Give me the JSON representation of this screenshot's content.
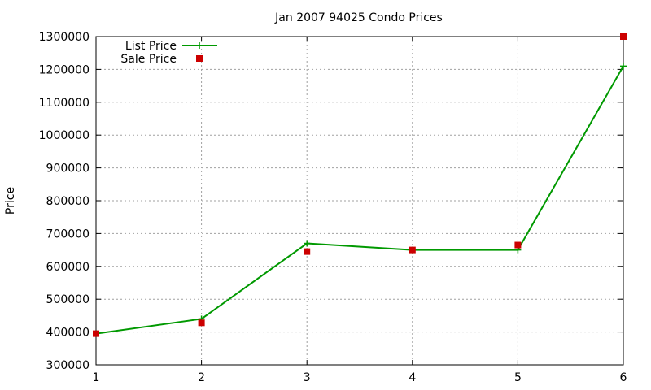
{
  "chart_data": {
    "type": "line",
    "title": "Jan 2007 94025 Condo Prices",
    "xlabel": "",
    "ylabel": "Price",
    "xlim": [
      1,
      6
    ],
    "ylim": [
      300000,
      1300000
    ],
    "x_ticks": [
      "1",
      "2",
      "3",
      "4",
      "5",
      "6"
    ],
    "y_ticks": [
      "300000",
      "400000",
      "500000",
      "600000",
      "700000",
      "800000",
      "900000",
      "1000000",
      "1100000",
      "1200000",
      "1300000"
    ],
    "grid": true,
    "legend_position": "top-left",
    "x": [
      1,
      2,
      3,
      4,
      5,
      6
    ],
    "series": [
      {
        "name": "List Price",
        "style": "line+cross",
        "color": "#009900",
        "values": [
          395000,
          440000,
          670000,
          650000,
          650000,
          1210000
        ]
      },
      {
        "name": "Sale Price",
        "style": "square",
        "color": "#cc0000",
        "values": [
          395000,
          428000,
          645000,
          650000,
          665000,
          1300000
        ]
      }
    ]
  }
}
